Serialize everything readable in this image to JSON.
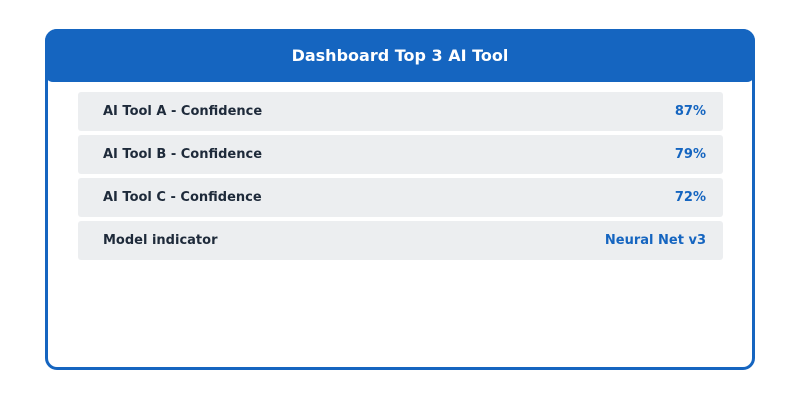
{
  "header": {
    "title": "Dashboard Top 3 AI Tool"
  },
  "rows": [
    {
      "label": "AI Tool A - Confidence",
      "value": "87%"
    },
    {
      "label": "AI Tool B - Confidence",
      "value": "79%"
    },
    {
      "label": "AI Tool C - Confidence",
      "value": "72%"
    },
    {
      "label": "Model indicator",
      "value": "Neural Net v3"
    }
  ]
}
